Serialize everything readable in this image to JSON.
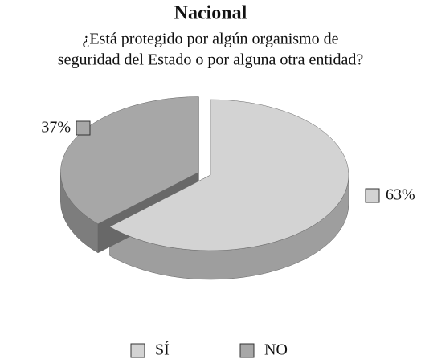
{
  "chart_data": {
    "type": "pie3d",
    "title": "Nacional",
    "subtitle": [
      "¿Está protegido por algún organismo de",
      "seguridad del Estado o por alguna otra entidad?"
    ],
    "categories": [
      "SÍ",
      "NO"
    ],
    "values": [
      63,
      37
    ],
    "value_labels": [
      "63%",
      "37%"
    ],
    "colors": [
      "#d3d3d3",
      "#a7a7a7"
    ],
    "legend": "bottom"
  }
}
